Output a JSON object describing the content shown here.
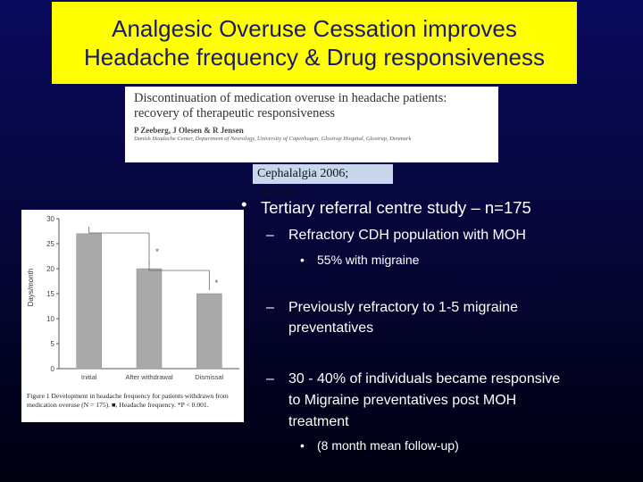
{
  "slide": {
    "title_line1": "Analgesic Overuse Cessation improves",
    "title_line2": "Headache frequency & Drug responsiveness"
  },
  "paper": {
    "title_line1": "Discontinuation of medication overuse in headache patients:",
    "title_line2": "recovery of therapeutic responsiveness",
    "authors": "P Zeeberg, J Olesen & R Jensen",
    "affiliation": "Danish Headache Center, Department of Neurology, University of Copenhagen, Glostrup Hospital, Glostrup, Denmark",
    "journal": "Cephalalgia 2006; 26:1192–"
  },
  "bullets": {
    "b1_marker": "•",
    "b1": "Tertiary referral centre study – n=175",
    "b1a_marker": "–",
    "b1a": "Refractory CDH population with MOH",
    "b1a1_marker": "•",
    "b1a1": "55% with migraine",
    "b1b_marker": "–",
    "b1b_line1": "Previously refractory to 1-5 migraine",
    "b1b_line2": "preventatives",
    "b1c_marker": "–",
    "b1c_line1": "30 - 40% of individuals became responsive",
    "b1c_line2": "to Migraine preventatives post MOH",
    "b1c_line3": "treatment",
    "b1c1_marker": "•",
    "b1c1": "(8 month mean follow-up)"
  },
  "figure": {
    "caption": "Figure 1 Development in headache frequency for patients withdrawn from medication overuse (N = 175). ■, Headache frequency. *P < 0.001."
  },
  "chart_data": {
    "type": "bar",
    "categories": [
      "Initial",
      "After withdrawal",
      "Dismissal"
    ],
    "values": [
      27,
      20,
      15
    ],
    "ylabel": "Days/month",
    "ylim": [
      0,
      30
    ],
    "yticks": [
      0,
      5,
      10,
      15,
      20,
      25,
      30
    ],
    "significance_marker": "*",
    "bar_color": "#a9a9a9"
  }
}
